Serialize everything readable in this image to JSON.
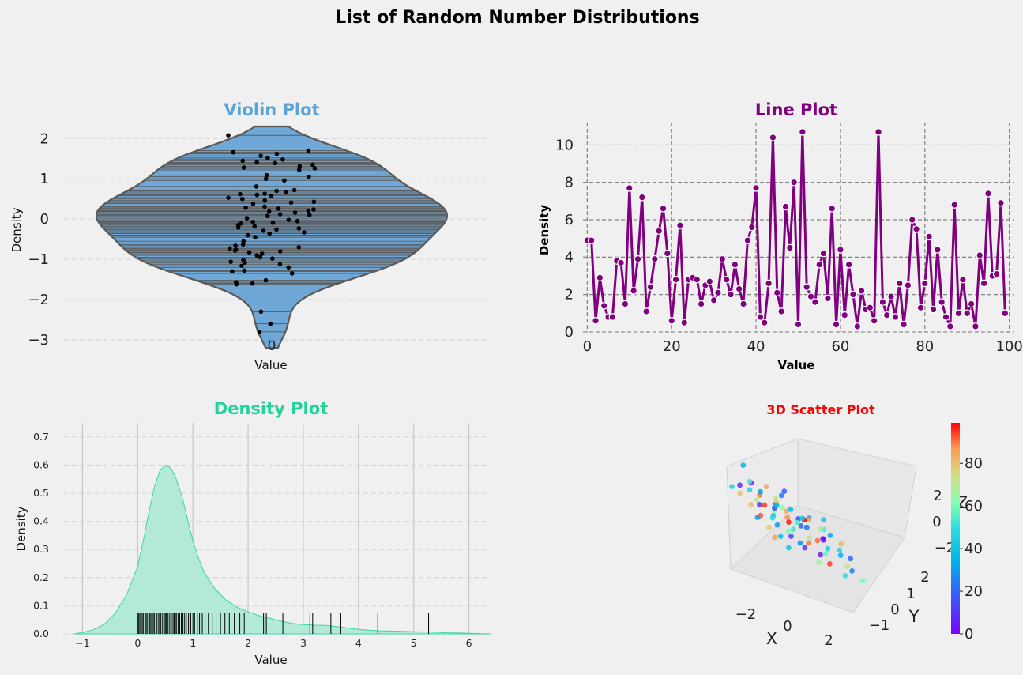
{
  "figure": {
    "suptitle": "List of Random Number Distributions"
  },
  "chart_data": [
    {
      "id": "violin",
      "type": "violin",
      "title": "Violin Plot",
      "title_color": "#5ba3d9",
      "xlabel": "Value",
      "ylabel": "Density",
      "xticks": [
        "0"
      ],
      "yticks": [
        -3,
        -2,
        -1,
        0,
        1,
        2
      ],
      "ylim": [
        -3.0,
        2.3
      ],
      "fill_color": "#6fa8d6",
      "grid": "y-dashed",
      "points": [
        2.08,
        1.7,
        1.66,
        1.62,
        1.57,
        1.52,
        1.48,
        1.45,
        1.41,
        1.39,
        1.35,
        1.31,
        1.28,
        1.26,
        1.22,
        1.09,
        1.05,
        1.0,
        0.96,
        0.81,
        0.72,
        0.7,
        0.67,
        0.63,
        0.62,
        0.6,
        0.58,
        0.53,
        0.5,
        0.46,
        0.43,
        0.41,
        0.38,
        0.31,
        0.28,
        0.26,
        0.24,
        0.21,
        0.19,
        0.16,
        0.12,
        0.1,
        0.08,
        0.02,
        -0.02,
        -0.05,
        -0.07,
        -0.09,
        -0.11,
        -0.15,
        -0.18,
        -0.21,
        -0.23,
        -0.26,
        -0.29,
        -0.33,
        -0.36,
        -0.4,
        -0.45,
        -0.55,
        -0.63,
        -0.66,
        -0.7,
        -0.73,
        -0.76,
        -0.78,
        -0.8,
        -0.83,
        -0.86,
        -0.9,
        -0.95,
        -0.98,
        -1.02,
        -1.06,
        -1.08,
        -1.12,
        -1.16,
        -1.2,
        -1.28,
        -1.3,
        -1.35,
        -1.52,
        -1.57,
        -1.6,
        -1.62,
        -2.3,
        -2.6,
        -2.8
      ]
    },
    {
      "id": "line",
      "type": "line",
      "title": "Line Plot",
      "title_color": "#800080",
      "xlabel": "Value",
      "ylabel": "Density",
      "xticks": [
        0,
        20,
        40,
        60,
        80,
        100
      ],
      "yticks": [
        0,
        2,
        4,
        6,
        8,
        10
      ],
      "xlim": [
        -1,
        101
      ],
      "ylim": [
        0,
        11.2
      ],
      "color": "#800080",
      "grid": "dashed",
      "values": [
        4.9,
        4.9,
        0.6,
        2.9,
        1.4,
        0.8,
        0.8,
        3.8,
        3.7,
        1.5,
        7.7,
        2.2,
        3.9,
        7.2,
        1.1,
        2.4,
        3.9,
        5.4,
        6.6,
        4.2,
        0.6,
        2.8,
        5.7,
        0.5,
        2.8,
        2.9,
        2.8,
        1.5,
        2.5,
        2.7,
        1.7,
        2.1,
        3.9,
        2.8,
        2.0,
        3.6,
        2.3,
        1.5,
        4.9,
        5.6,
        7.7,
        0.8,
        0.5,
        2.6,
        10.4,
        2.1,
        1.1,
        6.7,
        4.5,
        8.0,
        0.4,
        10.7,
        2.4,
        1.9,
        1.6,
        3.6,
        4.2,
        1.8,
        6.6,
        0.4,
        4.4,
        0.9,
        3.6,
        2.0,
        0.3,
        2.2,
        1.2,
        1.3,
        0.6,
        10.7,
        1.6,
        0.9,
        1.9,
        0.8,
        2.6,
        0.4,
        2.5,
        6.0,
        5.5,
        1.3,
        2.6,
        5.1,
        1.2,
        4.4,
        1.6,
        0.8,
        0.3,
        6.8,
        1.0,
        2.8,
        1.0,
        1.5,
        0.3,
        4.1,
        2.6,
        7.4,
        3.0,
        3.1,
        6.9,
        1.0
      ]
    },
    {
      "id": "density",
      "type": "area",
      "title": "Density Plot",
      "title_color": "#20d39a",
      "xlabel": "Value",
      "ylabel": "Density",
      "xticks": [
        -1,
        0,
        1,
        2,
        3,
        4,
        5,
        6
      ],
      "yticks": [
        "0.0",
        "0.1",
        "0.2",
        "0.3",
        "0.4",
        "0.5",
        "0.6",
        "0.7"
      ],
      "xlim": [
        -1.35,
        6.35
      ],
      "ylim": [
        0,
        0.75
      ],
      "fill_color": "#b3e9d8",
      "line_color": "#3dd5a3",
      "grid": "dashed",
      "curve": {
        "x": [
          -1.15,
          -1.0,
          -0.8,
          -0.6,
          -0.4,
          -0.2,
          0.0,
          0.1,
          0.2,
          0.3,
          0.4,
          0.5,
          0.6,
          0.7,
          0.8,
          0.9,
          1.0,
          1.1,
          1.2,
          1.4,
          1.6,
          1.8,
          2.0,
          2.2,
          2.4,
          2.6,
          2.8,
          3.0,
          3.2,
          3.4,
          3.6,
          3.8,
          4.0,
          4.2,
          4.4,
          4.6,
          4.8,
          5.0,
          5.2,
          5.4,
          5.6,
          5.8,
          6.0,
          6.2,
          6.4
        ],
        "y": [
          0.0,
          0.005,
          0.015,
          0.035,
          0.075,
          0.14,
          0.24,
          0.33,
          0.43,
          0.52,
          0.58,
          0.6,
          0.59,
          0.55,
          0.49,
          0.41,
          0.33,
          0.27,
          0.22,
          0.16,
          0.12,
          0.095,
          0.078,
          0.065,
          0.055,
          0.045,
          0.037,
          0.033,
          0.031,
          0.03,
          0.026,
          0.021,
          0.016,
          0.013,
          0.011,
          0.01,
          0.009,
          0.008,
          0.007,
          0.006,
          0.004,
          0.003,
          0.002,
          0.001,
          0.0
        ]
      },
      "rug": [
        0.0,
        0.02,
        0.04,
        0.06,
        0.08,
        0.1,
        0.13,
        0.15,
        0.17,
        0.2,
        0.22,
        0.24,
        0.26,
        0.28,
        0.3,
        0.33,
        0.35,
        0.38,
        0.4,
        0.42,
        0.45,
        0.48,
        0.5,
        0.52,
        0.55,
        0.58,
        0.61,
        0.64,
        0.66,
        0.68,
        0.7,
        0.73,
        0.76,
        0.79,
        0.82,
        0.85,
        0.88,
        0.92,
        0.96,
        1.0,
        1.03,
        1.08,
        1.12,
        1.17,
        1.22,
        1.28,
        1.35,
        1.42,
        1.5,
        1.58,
        1.66,
        1.75,
        1.85,
        1.93,
        2.28,
        2.33,
        2.63,
        3.12,
        3.17,
        3.5,
        3.68,
        4.35,
        5.27
      ]
    },
    {
      "id": "scatter3d",
      "type": "scatter",
      "title": "3D Scatter Plot",
      "title_color": "#ff0000",
      "xlabel": "X",
      "ylabel": "Y",
      "zlabel": "Z",
      "xticks": [
        "−2",
        "0",
        "2"
      ],
      "yticks": [
        "−1",
        "0",
        "1",
        "2"
      ],
      "zticks": [
        "−2",
        "0",
        "2"
      ],
      "colorbar_ticks": [
        "0",
        "20",
        "40",
        "60",
        "80"
      ],
      "colorbar_range": [
        0,
        99
      ],
      "colormap": "rainbow",
      "points": [
        [
          -0.8,
          2.2,
          2.7,
          35
        ],
        [
          -1.1,
          2.5,
          0.9,
          45
        ],
        [
          2.1,
          1.0,
          1.2,
          40
        ],
        [
          -0.5,
          1.6,
          1.0,
          90
        ],
        [
          -0.3,
          1.8,
          1.3,
          30
        ],
        [
          0.2,
          1.5,
          0.9,
          10
        ],
        [
          0.4,
          1.7,
          1.1,
          75
        ],
        [
          -1.6,
          0.8,
          1.4,
          5
        ],
        [
          -0.9,
          1.3,
          0.5,
          70
        ],
        [
          -0.2,
          1.1,
          0.3,
          60
        ],
        [
          0.3,
          1.0,
          0.6,
          85
        ],
        [
          0.7,
          0.8,
          0.4,
          15
        ],
        [
          1.0,
          1.2,
          0.2,
          55
        ],
        [
          1.3,
          0.9,
          0.8,
          25
        ],
        [
          -1.2,
          0.5,
          0.2,
          95
        ],
        [
          -0.6,
          0.7,
          -0.2,
          42
        ],
        [
          0.0,
          0.6,
          0.1,
          88
        ],
        [
          0.5,
          0.4,
          -0.1,
          18
        ],
        [
          0.9,
          0.6,
          0.0,
          65
        ],
        [
          1.5,
          0.3,
          -0.4,
          8
        ],
        [
          -2.2,
          0.1,
          -0.3,
          80
        ],
        [
          -1.9,
          -0.1,
          -0.8,
          92
        ],
        [
          -1.7,
          0.2,
          0.0,
          12
        ],
        [
          -1.4,
          -0.2,
          -0.6,
          48
        ],
        [
          -1.0,
          0.0,
          -0.9,
          30
        ],
        [
          -0.7,
          -0.3,
          -0.4,
          97
        ],
        [
          -0.3,
          -0.1,
          -0.7,
          52
        ],
        [
          0.1,
          -0.4,
          -0.2,
          22
        ],
        [
          0.4,
          -0.2,
          -0.8,
          68
        ],
        [
          0.8,
          -0.5,
          -0.5,
          3
        ],
        [
          1.2,
          -0.3,
          -1.0,
          44
        ],
        [
          1.6,
          -0.6,
          -0.3,
          82
        ],
        [
          -2.0,
          -0.7,
          -1.5,
          77
        ],
        [
          -1.6,
          -0.9,
          -1.8,
          38
        ],
        [
          -1.3,
          -1.0,
          -1.2,
          62
        ],
        [
          -0.9,
          -1.2,
          -1.7,
          28
        ],
        [
          -0.4,
          -1.1,
          -1.4,
          90
        ],
        [
          0.0,
          -1.3,
          -1.9,
          6
        ],
        [
          0.5,
          -1.0,
          -1.6,
          58
        ],
        [
          0.9,
          -1.4,
          -1.3,
          34
        ],
        [
          1.4,
          -1.2,
          -1.8,
          73
        ],
        [
          1.8,
          -0.9,
          -1.1,
          20
        ],
        [
          -2.4,
          -1.5,
          -2.2,
          86
        ],
        [
          -1.8,
          -1.6,
          -2.5,
          40
        ],
        [
          -1.1,
          -1.7,
          -2.0,
          10
        ],
        [
          -0.5,
          -1.8,
          -2.6,
          66
        ],
        [
          0.2,
          -1.6,
          -2.3,
          94
        ],
        [
          0.7,
          -1.9,
          -2.7,
          50
        ],
        [
          1.2,
          -1.7,
          -2.1,
          26
        ],
        [
          1.9,
          -1.5,
          -2.4,
          60
        ],
        [
          -0.1,
          0.3,
          0.7,
          36
        ],
        [
          0.6,
          0.1,
          0.5,
          83
        ],
        [
          -0.8,
          0.4,
          0.3,
          14
        ],
        [
          1.1,
          0.0,
          0.2,
          71
        ],
        [
          -1.5,
          1.0,
          0.9,
          46
        ],
        [
          0.3,
          1.3,
          1.6,
          24
        ],
        [
          1.7,
          0.5,
          0.4,
          55
        ],
        [
          -0.2,
          -0.6,
          0.2,
          99
        ],
        [
          0.9,
          -0.8,
          -0.1,
          31
        ],
        [
          -1.1,
          -0.4,
          0.4,
          63
        ],
        [
          0.1,
          0.9,
          1.9,
          19
        ],
        [
          -0.6,
          1.1,
          1.7,
          84
        ],
        [
          1.4,
          1.4,
          0.7,
          41
        ],
        [
          -1.3,
          1.8,
          1.1,
          9
        ],
        [
          0.6,
          2.0,
          1.4,
          72
        ],
        [
          -0.4,
          2.3,
          1.8,
          54
        ],
        [
          1.0,
          2.4,
          1.0,
          37
        ],
        [
          -1.8,
          1.2,
          0.4,
          79
        ],
        [
          2.2,
          0.2,
          -0.6,
          47
        ],
        [
          -2.3,
          -0.4,
          -1.1,
          29
        ],
        [
          0.2,
          -0.9,
          -0.9,
          91
        ],
        [
          -0.5,
          -0.2,
          -1.3,
          13
        ]
      ]
    }
  ]
}
